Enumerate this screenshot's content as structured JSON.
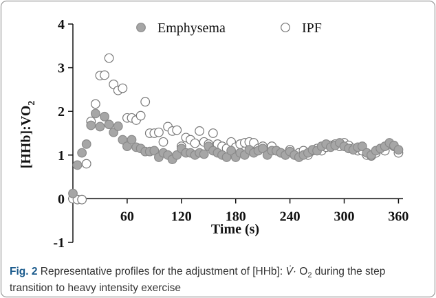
{
  "chart_data": {
    "type": "scatter",
    "xlabel": "Time (s)",
    "ylabel": {
      "main": "[HHb]:VO",
      "sub": "2"
    },
    "xlim": [
      0,
      365
    ],
    "ylim": [
      -1,
      4
    ],
    "xticks": [
      60,
      120,
      180,
      240,
      300,
      360
    ],
    "yticks": [
      -1,
      0,
      1,
      2,
      3,
      4
    ],
    "legend": "top",
    "x": [
      0,
      5,
      10,
      15,
      20,
      25,
      30,
      35,
      40,
      45,
      50,
      55,
      60,
      65,
      70,
      75,
      80,
      85,
      90,
      95,
      100,
      105,
      110,
      115,
      120,
      125,
      130,
      135,
      140,
      145,
      150,
      155,
      160,
      165,
      170,
      175,
      180,
      185,
      190,
      195,
      200,
      205,
      210,
      215,
      220,
      225,
      230,
      235,
      240,
      245,
      250,
      255,
      260,
      265,
      270,
      275,
      280,
      285,
      290,
      295,
      300,
      305,
      310,
      315,
      320,
      325,
      330,
      335,
      340,
      345,
      350,
      355,
      360
    ],
    "series": [
      {
        "name": "Emphysema",
        "color": "#a6a6a6",
        "filled": true,
        "values": [
          0.12,
          0.77,
          1.05,
          1.25,
          1.68,
          1.95,
          1.65,
          1.88,
          1.7,
          1.52,
          1.66,
          1.35,
          1.2,
          1.35,
          1.18,
          1.15,
          1.08,
          1.08,
          1.1,
          0.95,
          1.05,
          1.0,
          0.9,
          1.0,
          1.15,
          1.05,
          1.05,
          1.0,
          1.05,
          1.02,
          1.2,
          1.1,
          1.05,
          1.0,
          0.95,
          1.1,
          0.95,
          1.05,
          1.0,
          1.12,
          1.05,
          1.1,
          1.15,
          1.0,
          1.1,
          1.1,
          1.05,
          1.0,
          1.08,
          1.0,
          0.95,
          1.0,
          1.05,
          1.12,
          1.1,
          1.2,
          1.25,
          1.18,
          1.22,
          1.28,
          1.2,
          1.15,
          1.12,
          1.18,
          1.2,
          1.05,
          1.0,
          1.1,
          1.15,
          1.2,
          1.28,
          1.22,
          1.12
        ]
      },
      {
        "name": "IPF",
        "color": "#777777",
        "filled": false,
        "values": [
          0,
          -0.02,
          -0.02,
          0.8,
          1.77,
          2.17,
          2.82,
          2.83,
          3.22,
          2.62,
          2.48,
          2.53,
          1.85,
          1.85,
          1.8,
          1.9,
          2.22,
          1.5,
          1.5,
          1.52,
          1.3,
          1.65,
          1.55,
          1.57,
          1.2,
          1.4,
          1.35,
          1.27,
          1.55,
          1.3,
          1.25,
          1.5,
          1.25,
          1.2,
          1.15,
          1.3,
          1.18,
          1.25,
          1.28,
          1.3,
          1.28,
          1.15,
          1.2,
          1.1,
          1.2,
          1.1,
          1.05,
          1.0,
          1.12,
          1.0,
          1.05,
          1.1,
          1.0,
          1.1,
          1.15,
          1.1,
          1.18,
          1.22,
          1.25,
          1.2,
          1.28,
          1.22,
          1.15,
          1.1,
          1.1,
          1.0,
          0.98,
          1.05,
          1.15,
          1.1,
          1.25,
          1.2,
          1.05
        ]
      }
    ]
  },
  "caption": {
    "label": "Fig. 2",
    "text_before": "Representative profiles for the adjustment of [HHb]: ",
    "vdot": "V̇·",
    "text_mid": " O",
    "sub": "2",
    "text_after": " during the step transition to heavy intensity exercise"
  }
}
